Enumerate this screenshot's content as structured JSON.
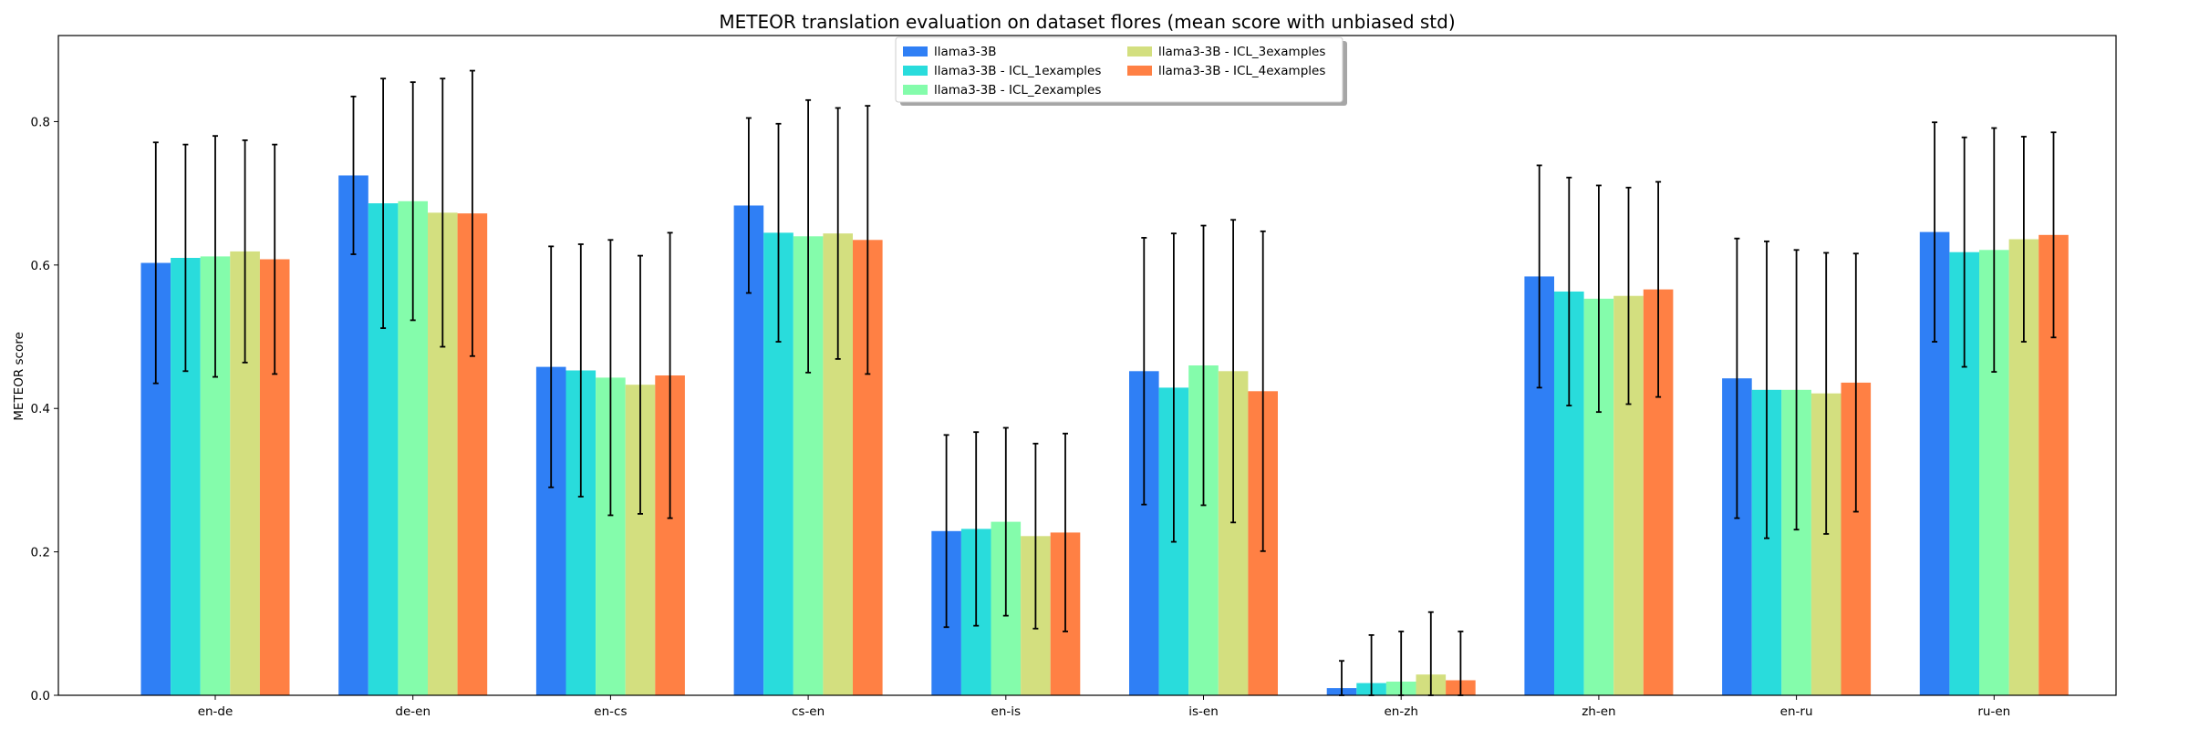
{
  "chart_data": {
    "type": "bar",
    "title": "METEOR translation evaluation on dataset flores (mean score with unbiased std)",
    "xlabel": "",
    "ylabel": "METEOR score",
    "ylim": [
      0,
      0.92
    ],
    "yticks": [
      0.0,
      0.2,
      0.4,
      0.6,
      0.8
    ],
    "ytick_labels": [
      "0.0",
      "0.2",
      "0.4",
      "0.6",
      "0.8"
    ],
    "grid": false,
    "legend_position": "top-center",
    "categories": [
      "en-de",
      "de-en",
      "en-cs",
      "cs-en",
      "en-is",
      "is-en",
      "en-zh",
      "zh-en",
      "en-ru",
      "ru-en"
    ],
    "series": [
      {
        "name": "llama3-3B",
        "color": "#2f7ff5",
        "values": [
          0.603,
          0.725,
          0.458,
          0.683,
          0.229,
          0.452,
          0.01,
          0.584,
          0.442,
          0.646
        ],
        "errors": [
          0.168,
          0.11,
          0.168,
          0.122,
          0.134,
          0.186,
          0.038,
          0.155,
          0.195,
          0.153
        ]
      },
      {
        "name": "llama3-3B - ICL_1examples",
        "color": "#29dcdc",
        "values": [
          0.61,
          0.686,
          0.453,
          0.645,
          0.232,
          0.429,
          0.017,
          0.563,
          0.426,
          0.618
        ],
        "errors": [
          0.158,
          0.174,
          0.176,
          0.152,
          0.135,
          0.215,
          0.067,
          0.159,
          0.207,
          0.16
        ]
      },
      {
        "name": "llama3-3B - ICL_2examples",
        "color": "#84fcab",
        "values": [
          0.612,
          0.689,
          0.443,
          0.64,
          0.242,
          0.46,
          0.019,
          0.553,
          0.426,
          0.621
        ],
        "errors": [
          0.168,
          0.166,
          0.192,
          0.19,
          0.131,
          0.195,
          0.07,
          0.158,
          0.195,
          0.17
        ]
      },
      {
        "name": "llama3-3B - ICL_3examples",
        "color": "#d3df7f",
        "values": [
          0.619,
          0.673,
          0.433,
          0.644,
          0.222,
          0.452,
          0.029,
          0.557,
          0.421,
          0.636
        ],
        "errors": [
          0.155,
          0.187,
          0.18,
          0.175,
          0.129,
          0.211,
          0.087,
          0.151,
          0.196,
          0.143
        ]
      },
      {
        "name": "llama3-3B - ICL_4examples",
        "color": "#ff8044",
        "values": [
          0.608,
          0.672,
          0.446,
          0.635,
          0.227,
          0.424,
          0.021,
          0.566,
          0.436,
          0.642
        ],
        "errors": [
          0.16,
          0.199,
          0.199,
          0.187,
          0.138,
          0.223,
          0.068,
          0.15,
          0.18,
          0.143
        ]
      }
    ]
  }
}
